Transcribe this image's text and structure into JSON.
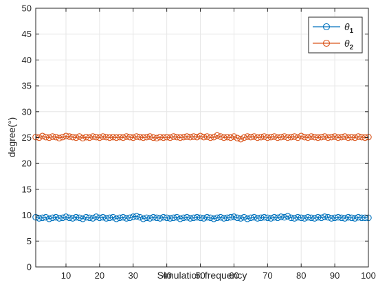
{
  "chart_data": {
    "type": "line",
    "title": "",
    "xlabel": "Simulation frequency",
    "ylabel": "degree(°)",
    "xlim": [
      1,
      100
    ],
    "ylim": [
      0,
      50
    ],
    "xticks": [
      10,
      20,
      30,
      40,
      50,
      60,
      70,
      80,
      90,
      100
    ],
    "yticks": [
      0,
      5,
      10,
      15,
      20,
      25,
      30,
      35,
      40,
      45,
      50
    ],
    "grid": true,
    "legend_position": "top-right",
    "x": [
      1,
      2,
      3,
      4,
      5,
      6,
      7,
      8,
      9,
      10,
      11,
      12,
      13,
      14,
      15,
      16,
      17,
      18,
      19,
      20,
      21,
      22,
      23,
      24,
      25,
      26,
      27,
      28,
      29,
      30,
      31,
      32,
      33,
      34,
      35,
      36,
      37,
      38,
      39,
      40,
      41,
      42,
      43,
      44,
      45,
      46,
      47,
      48,
      49,
      50,
      51,
      52,
      53,
      54,
      55,
      56,
      57,
      58,
      59,
      60,
      61,
      62,
      63,
      64,
      65,
      66,
      67,
      68,
      69,
      70,
      71,
      72,
      73,
      74,
      75,
      76,
      77,
      78,
      79,
      80,
      81,
      82,
      83,
      84,
      85,
      86,
      87,
      88,
      89,
      90,
      91,
      92,
      93,
      94,
      95,
      96,
      97,
      98,
      99,
      100
    ],
    "series": [
      {
        "name": "θ1",
        "color": "#0072BD",
        "marker": "circle",
        "values": [
          9.6,
          9.4,
          9.5,
          9.6,
          9.3,
          9.5,
          9.6,
          9.4,
          9.5,
          9.7,
          9.5,
          9.4,
          9.6,
          9.5,
          9.3,
          9.6,
          9.5,
          9.4,
          9.7,
          9.5,
          9.6,
          9.4,
          9.5,
          9.6,
          9.3,
          9.5,
          9.6,
          9.4,
          9.5,
          9.7,
          9.8,
          9.6,
          9.3,
          9.5,
          9.4,
          9.6,
          9.5,
          9.4,
          9.6,
          9.5,
          9.4,
          9.5,
          9.6,
          9.3,
          9.5,
          9.6,
          9.4,
          9.5,
          9.6,
          9.5,
          9.4,
          9.6,
          9.5,
          9.3,
          9.5,
          9.6,
          9.4,
          9.5,
          9.6,
          9.7,
          9.5,
          9.4,
          9.6,
          9.3,
          9.5,
          9.6,
          9.4,
          9.5,
          9.6,
          9.5,
          9.4,
          9.6,
          9.5,
          9.7,
          9.6,
          9.8,
          9.5,
          9.4,
          9.6,
          9.5,
          9.4,
          9.6,
          9.5,
          9.4,
          9.6,
          9.5,
          9.7,
          9.6,
          9.4,
          9.5,
          9.6,
          9.5,
          9.4,
          9.6,
          9.5,
          9.4,
          9.6,
          9.5,
          9.5,
          9.5
        ]
      },
      {
        "name": "θ2",
        "color": "#D95319",
        "marker": "circle",
        "values": [
          25.1,
          25.0,
          25.3,
          25.1,
          25.0,
          25.2,
          25.1,
          24.9,
          25.1,
          25.3,
          25.2,
          25.1,
          25.0,
          25.2,
          24.9,
          25.1,
          25.0,
          25.2,
          25.1,
          25.0,
          25.2,
          25.1,
          25.0,
          25.1,
          25.0,
          25.1,
          25.0,
          25.2,
          25.1,
          25.0,
          25.2,
          25.1,
          25.0,
          25.1,
          25.2,
          25.0,
          24.9,
          25.1,
          25.0,
          25.1,
          25.0,
          25.2,
          25.1,
          25.0,
          25.1,
          25.2,
          25.1,
          25.2,
          25.1,
          25.3,
          25.1,
          25.2,
          25.0,
          25.1,
          25.4,
          25.2,
          25.0,
          25.1,
          25.0,
          25.2,
          24.9,
          24.7,
          25.0,
          25.2,
          25.1,
          25.2,
          25.0,
          25.1,
          25.2,
          25.0,
          25.1,
          25.2,
          25.0,
          25.1,
          25.2,
          25.0,
          25.1,
          25.2,
          25.0,
          25.3,
          25.1,
          25.0,
          25.2,
          25.1,
          25.0,
          25.1,
          25.2,
          25.0,
          25.1,
          25.2,
          25.0,
          25.1,
          25.2,
          25.0,
          25.1,
          25.0,
          25.2,
          25.1,
          25.0,
          25.1
        ]
      }
    ]
  }
}
